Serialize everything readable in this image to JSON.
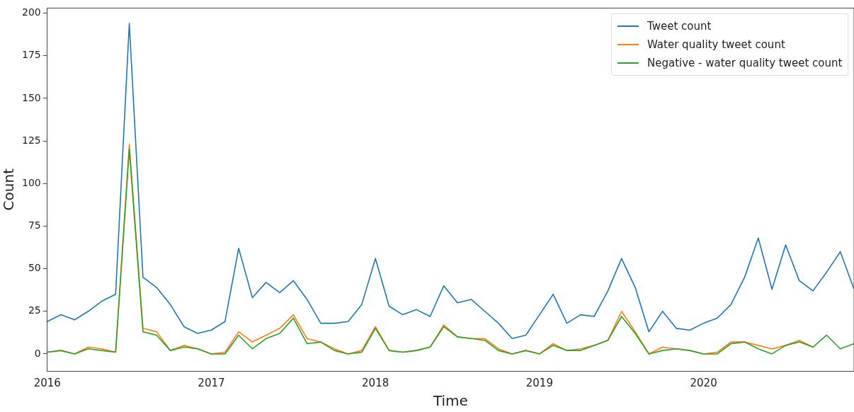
{
  "chart_data": {
    "type": "line",
    "xlabel": "Time",
    "ylabel": "Count",
    "x": [
      "2016-01",
      "2016-02",
      "2016-03",
      "2016-04",
      "2016-05",
      "2016-06",
      "2016-07",
      "2016-08",
      "2016-09",
      "2016-10",
      "2016-11",
      "2016-12",
      "2017-01",
      "2017-02",
      "2017-03",
      "2017-04",
      "2017-05",
      "2017-06",
      "2017-07",
      "2017-08",
      "2017-09",
      "2017-10",
      "2017-11",
      "2017-12",
      "2018-01",
      "2018-02",
      "2018-03",
      "2018-04",
      "2018-05",
      "2018-06",
      "2018-07",
      "2018-08",
      "2018-09",
      "2018-10",
      "2018-11",
      "2018-12",
      "2019-01",
      "2019-02",
      "2019-03",
      "2019-04",
      "2019-05",
      "2019-06",
      "2019-07",
      "2019-08",
      "2019-09",
      "2019-10",
      "2019-11",
      "2019-12",
      "2020-01",
      "2020-02",
      "2020-03",
      "2020-04",
      "2020-05",
      "2020-06",
      "2020-07",
      "2020-08",
      "2020-09",
      "2020-10",
      "2020-11",
      "2020-12"
    ],
    "series": [
      {
        "name": "Tweet count",
        "color": "#1f77b4",
        "values": [
          19,
          23,
          20,
          25,
          31,
          35,
          194,
          45,
          39,
          29,
          16,
          12,
          14,
          19,
          62,
          33,
          42,
          36,
          43,
          32,
          18,
          18,
          19,
          29,
          56,
          28,
          23,
          26,
          22,
          40,
          30,
          32,
          25,
          18,
          9,
          11,
          23,
          35,
          18,
          23,
          22,
          37,
          56,
          39,
          13,
          25,
          15,
          14,
          18,
          21,
          29,
          45,
          68,
          38,
          64,
          43,
          37,
          48,
          60,
          38
        ]
      },
      {
        "name": "Water quality tweet count",
        "color": "#ff7f0e",
        "values": [
          1,
          2,
          0,
          4,
          3,
          1,
          123,
          15,
          13,
          2,
          5,
          3,
          0,
          1,
          13,
          7,
          11,
          15,
          23,
          9,
          7,
          3,
          0,
          2,
          16,
          2,
          1,
          2,
          4,
          17,
          10,
          9,
          9,
          3,
          0,
          2,
          0,
          6,
          2,
          3,
          5,
          8,
          25,
          13,
          0,
          4,
          3,
          2,
          0,
          1,
          7,
          7,
          5,
          3,
          5,
          8,
          4,
          null,
          null,
          null
        ]
      },
      {
        "name": "Negative - water quality tweet count",
        "color": "#2ca02c",
        "values": [
          1,
          2,
          0,
          3,
          2,
          1,
          120,
          13,
          11,
          2,
          4,
          3,
          0,
          0,
          11,
          3,
          9,
          12,
          21,
          6,
          7,
          2,
          0,
          1,
          15,
          2,
          1,
          2,
          4,
          16,
          10,
          9,
          8,
          2,
          0,
          2,
          0,
          5,
          2,
          2,
          5,
          8,
          22,
          12,
          0,
          2,
          3,
          2,
          0,
          0,
          6,
          7,
          3,
          0,
          5,
          7,
          4,
          11,
          3,
          6
        ]
      }
    ],
    "xlim": [
      "2016-01",
      "2020-12"
    ],
    "xticks": [
      "2016",
      "2017",
      "2018",
      "2019",
      "2020"
    ],
    "ylim": [
      -10,
      203
    ],
    "yticks": [
      0,
      25,
      50,
      75,
      100,
      125,
      150,
      175,
      200
    ],
    "grid": false,
    "legend": "top right",
    "marker": "none",
    "line_style": "solid"
  }
}
